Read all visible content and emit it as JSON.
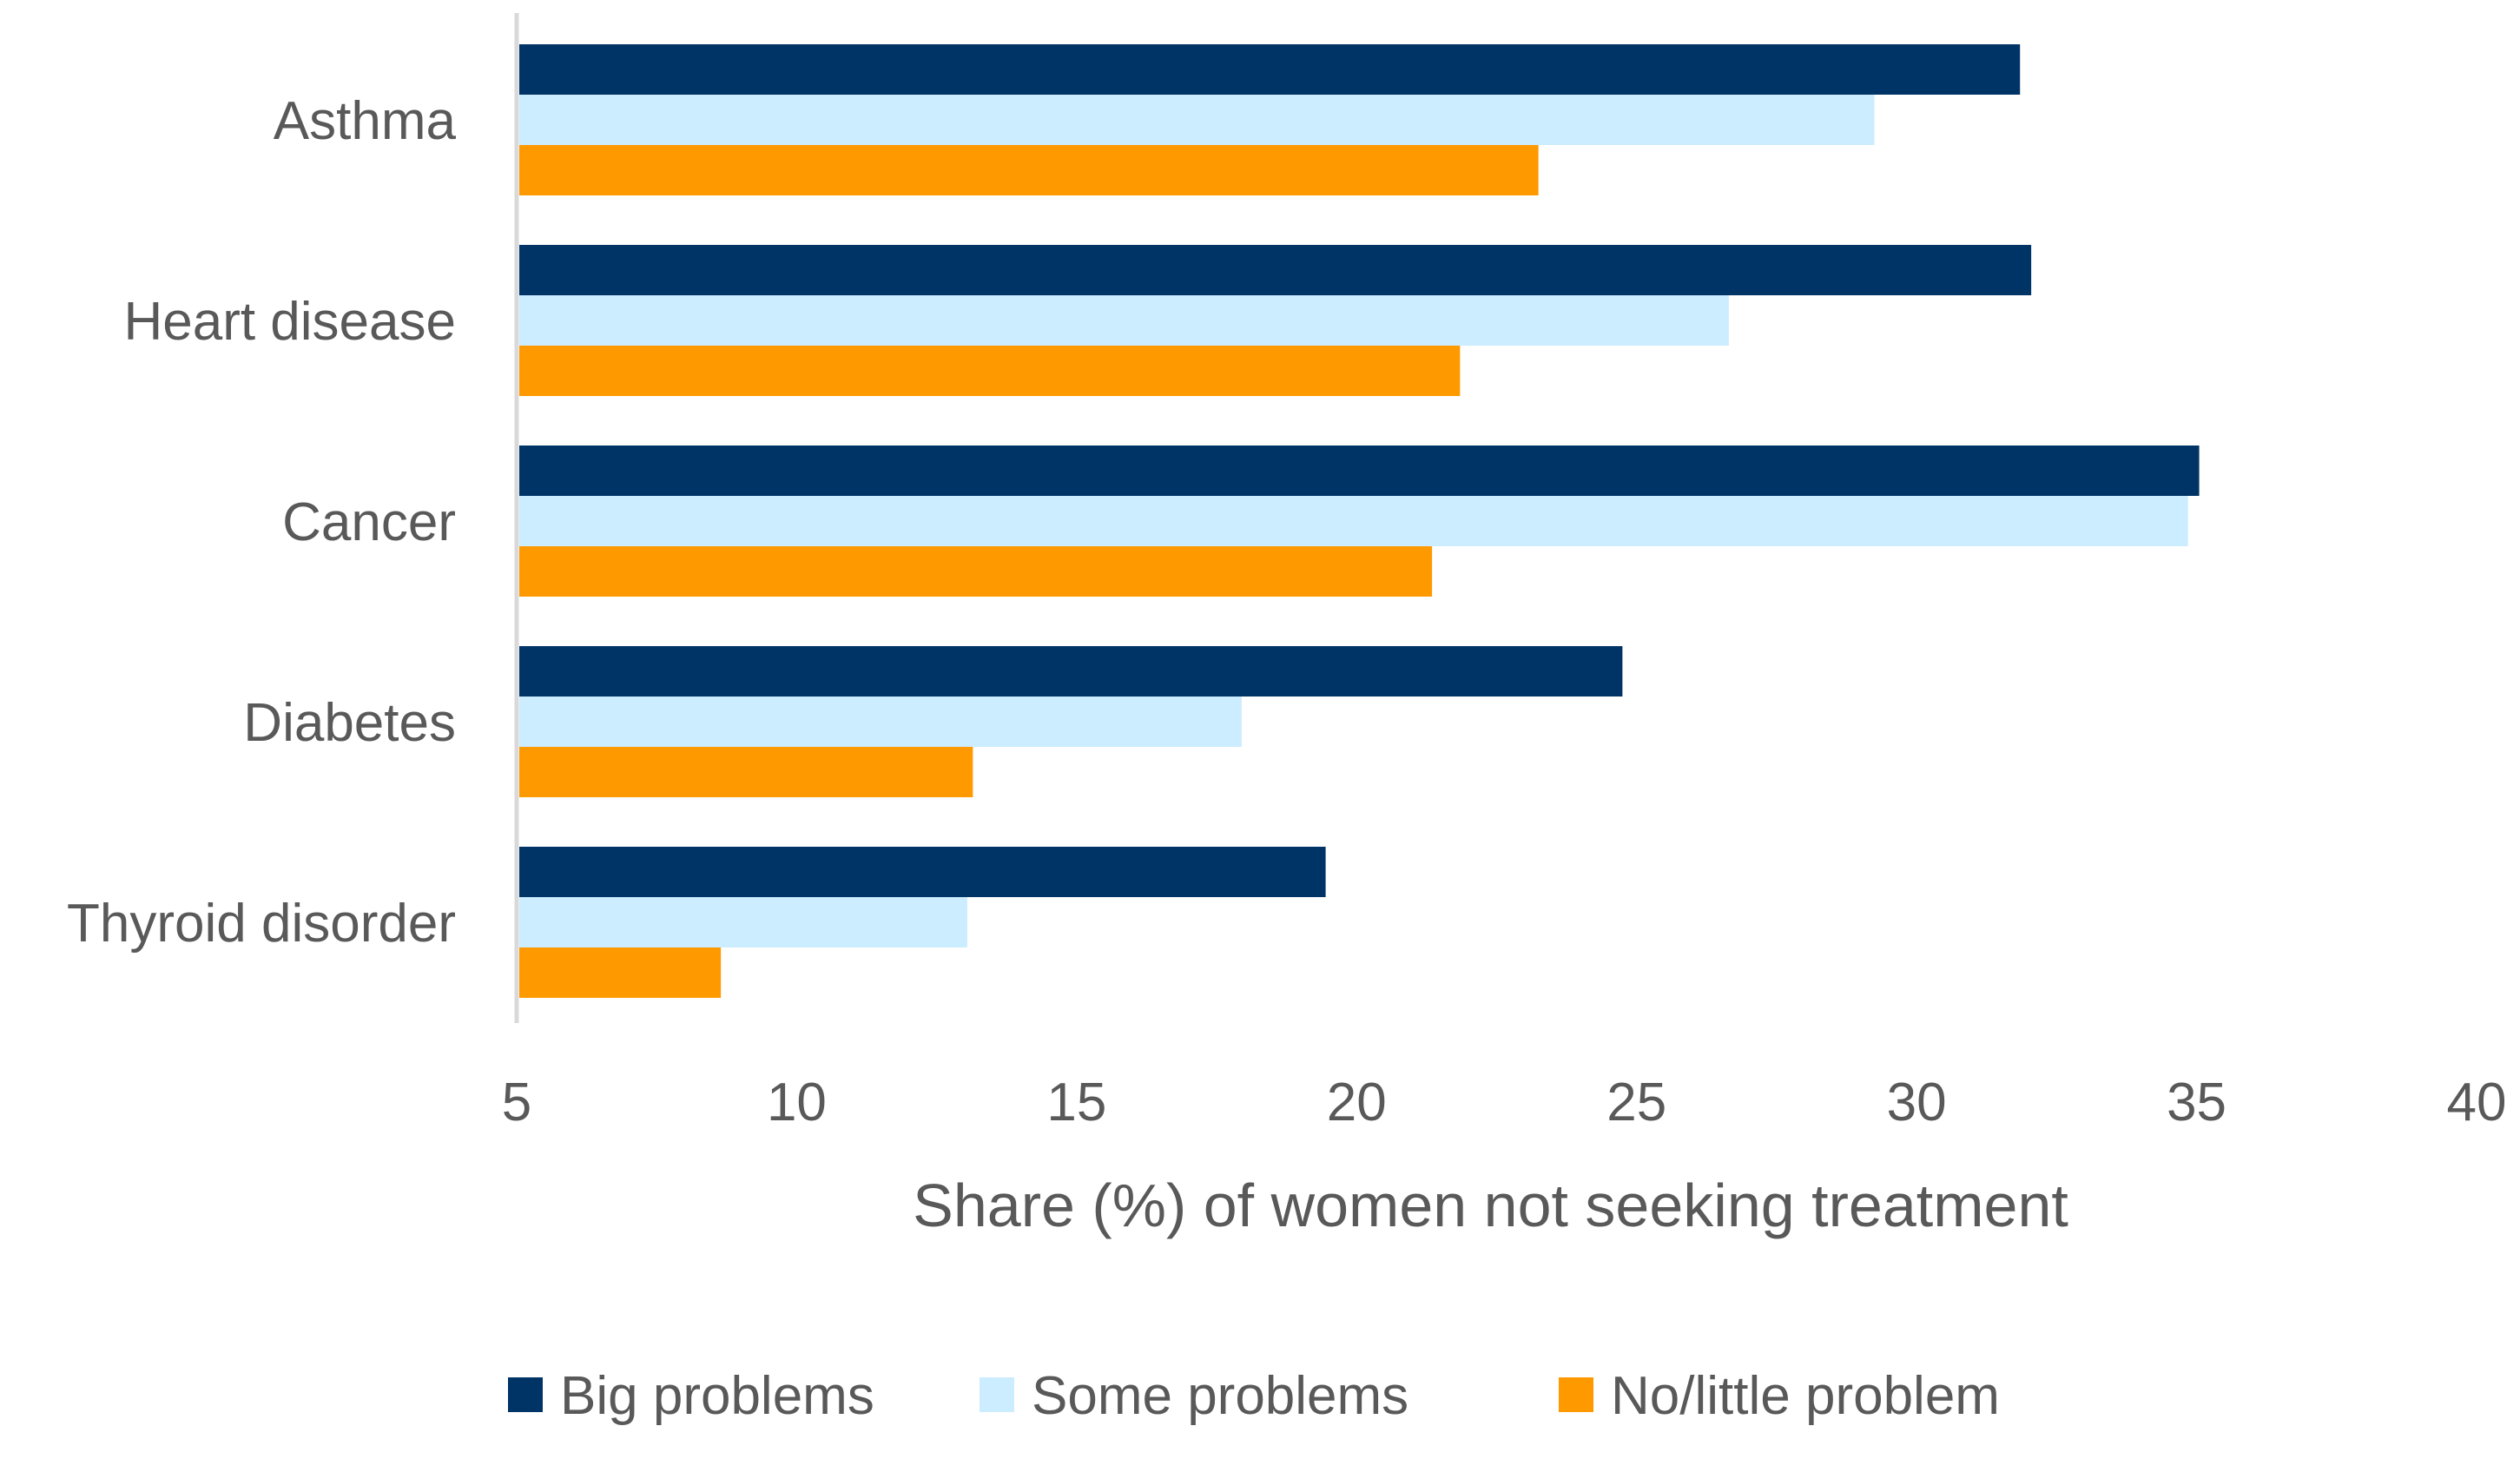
{
  "chart_data": {
    "type": "bar",
    "orientation": "horizontal",
    "title": "",
    "xlabel": "Share (%) of women not seeking treatment",
    "ylabel": "",
    "xlim": [
      5,
      40
    ],
    "xticks": [
      5,
      10,
      15,
      20,
      25,
      30,
      35,
      40
    ],
    "grid": false,
    "legend_position": "bottom",
    "categories": [
      "Asthma",
      "Heart disease",
      "Cancer",
      "Diabetes",
      "Thyroid disorder"
    ],
    "series": [
      {
        "name": "Big problems",
        "color": "#003366",
        "values": [
          31.8,
          32.0,
          35.0,
          24.7,
          19.4
        ]
      },
      {
        "name": "Some problems",
        "color": "#CCECFF",
        "values": [
          29.2,
          26.6,
          34.8,
          17.9,
          13.0
        ]
      },
      {
        "name": "No/little problem",
        "color": "#FF9900",
        "values": [
          23.2,
          21.8,
          21.3,
          13.1,
          8.6
        ]
      }
    ]
  }
}
